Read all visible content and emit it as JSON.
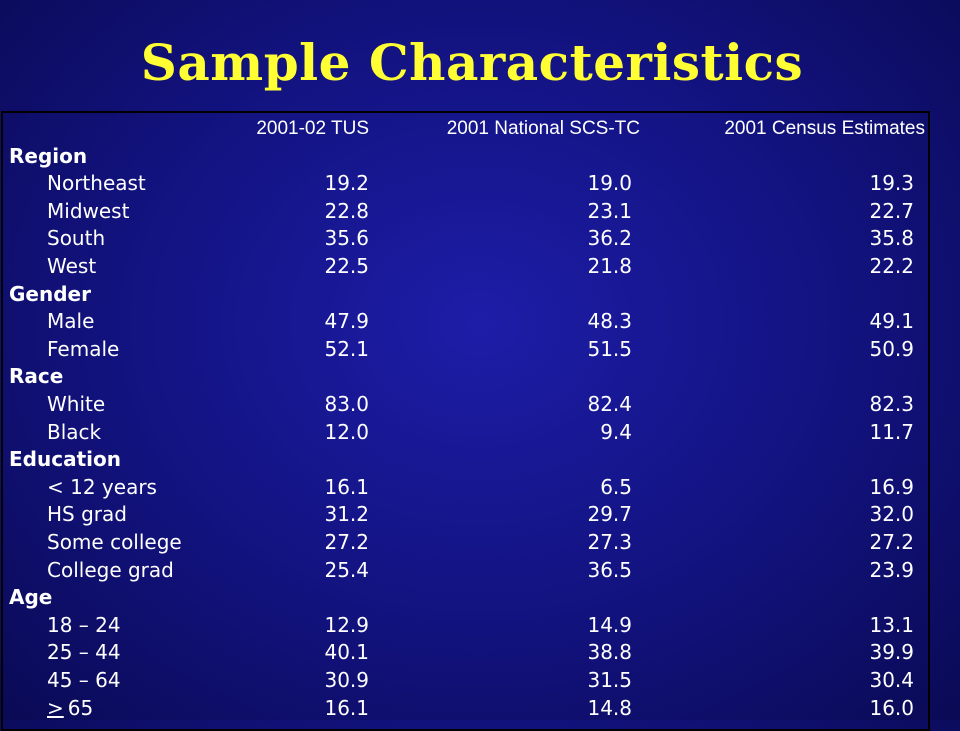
{
  "title": "Sample Characteristics",
  "table": {
    "headers": [
      "2001-02 TUS",
      "2001 National SCS-TC",
      "2001 Census Estimates"
    ],
    "sections": [
      {
        "label": "Region",
        "rows": [
          {
            "label": "Northeast",
            "values": [
              "19.2",
              "19.0",
              "19.3"
            ]
          },
          {
            "label": "Midwest",
            "values": [
              "22.8",
              "23.1",
              "22.7"
            ]
          },
          {
            "label": "South",
            "values": [
              "35.6",
              "36.2",
              "35.8"
            ]
          },
          {
            "label": "West",
            "values": [
              "22.5",
              "21.8",
              "22.2"
            ]
          }
        ]
      },
      {
        "label": "Gender",
        "rows": [
          {
            "label": "Male",
            "values": [
              "47.9",
              "48.3",
              "49.1"
            ]
          },
          {
            "label": "Female",
            "values": [
              "52.1",
              "51.5",
              "50.9"
            ]
          }
        ]
      },
      {
        "label": "Race",
        "rows": [
          {
            "label": "White",
            "values": [
              "83.0",
              "82.4",
              "82.3"
            ]
          },
          {
            "label": "Black",
            "values": [
              "12.0",
              "9.4",
              "11.7"
            ]
          }
        ]
      },
      {
        "label": "Education",
        "rows": [
          {
            "label": "< 12 years",
            "values": [
              "16.1",
              "6.5",
              "16.9"
            ]
          },
          {
            "label": "HS grad",
            "values": [
              "31.2",
              "29.7",
              "32.0"
            ]
          },
          {
            "label": "Some college",
            "values": [
              "27.2",
              "27.3",
              "27.2"
            ]
          },
          {
            "label": "College grad",
            "values": [
              "25.4",
              "36.5",
              "23.9"
            ]
          }
        ]
      },
      {
        "label": "Age",
        "rows": [
          {
            "label": "18 – 24",
            "values": [
              "12.9",
              "14.9",
              "13.1"
            ]
          },
          {
            "label": "25 – 44",
            "values": [
              "40.1",
              "38.8",
              "39.9"
            ]
          },
          {
            "label": "45 – 64",
            "values": [
              "30.9",
              "31.5",
              "30.4"
            ]
          },
          {
            "label": "> 65",
            "values": [
              "16.1",
              "14.8",
              "16.0"
            ]
          }
        ]
      }
    ]
  }
}
